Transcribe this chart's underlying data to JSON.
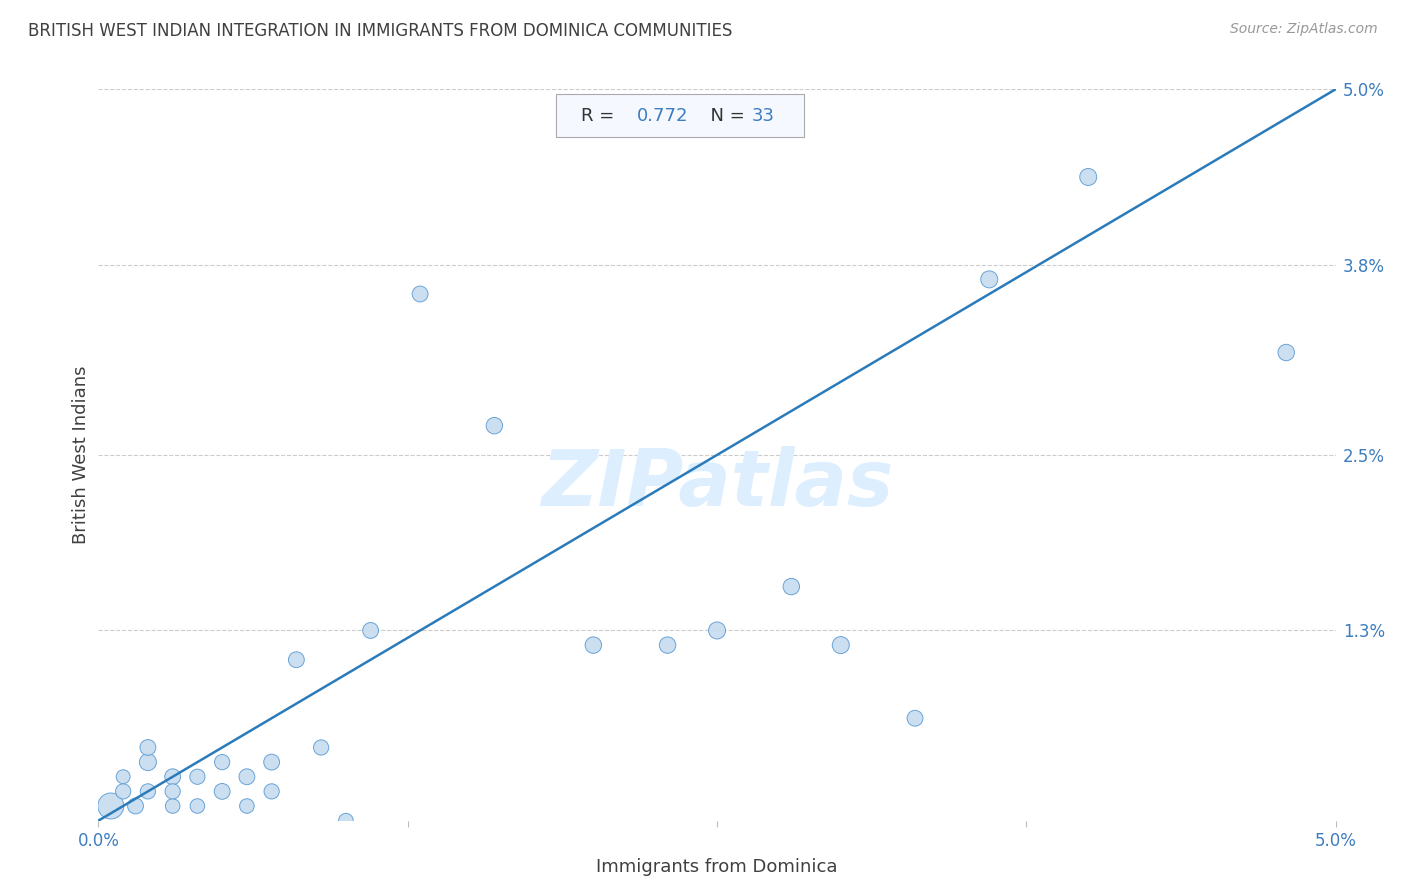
{
  "title": "BRITISH WEST INDIAN INTEGRATION IN IMMIGRANTS FROM DOMINICA COMMUNITIES",
  "source": "Source: ZipAtlas.com",
  "xlabel": "Immigrants from Dominica",
  "ylabel": "British West Indians",
  "R": 0.772,
  "N": 33,
  "xlim": [
    0.0,
    0.05
  ],
  "ylim": [
    0.0,
    0.05
  ],
  "xtick_pos": [
    0.0,
    0.0125,
    0.025,
    0.0375,
    0.05
  ],
  "xtick_labels": [
    "0.0%",
    "",
    "",
    "",
    "5.0%"
  ],
  "ytick_labels_right": [
    "5.0%",
    "3.8%",
    "2.5%",
    "1.3%",
    ""
  ],
  "ytick_positions_right": [
    0.05,
    0.038,
    0.025,
    0.013,
    0.0
  ],
  "scatter_x": [
    0.0005,
    0.001,
    0.001,
    0.0015,
    0.002,
    0.002,
    0.002,
    0.003,
    0.003,
    0.003,
    0.004,
    0.004,
    0.005,
    0.005,
    0.006,
    0.006,
    0.007,
    0.007,
    0.008,
    0.009,
    0.01,
    0.011,
    0.013,
    0.016,
    0.02,
    0.023,
    0.025,
    0.028,
    0.03,
    0.033,
    0.036,
    0.04,
    0.048
  ],
  "scatter_y": [
    0.001,
    0.002,
    0.003,
    0.001,
    0.004,
    0.002,
    0.005,
    0.001,
    0.003,
    0.002,
    0.001,
    0.003,
    0.002,
    0.004,
    0.001,
    0.003,
    0.002,
    0.004,
    0.011,
    0.005,
    0.0,
    0.013,
    0.036,
    0.027,
    0.012,
    0.012,
    0.013,
    0.016,
    0.012,
    0.007,
    0.037,
    0.044,
    0.032
  ],
  "scatter_sizes": [
    350,
    120,
    100,
    130,
    150,
    120,
    130,
    110,
    130,
    120,
    110,
    120,
    130,
    120,
    110,
    130,
    120,
    130,
    130,
    120,
    110,
    130,
    130,
    140,
    140,
    140,
    150,
    140,
    150,
    130,
    150,
    150,
    140
  ],
  "scatter_color": "#c6dcef",
  "scatter_edge_color": "#5b9bd5",
  "line_color": "#2b7bba",
  "grid_color": "#cccccc",
  "background_color": "#ffffff",
  "title_color": "#404040",
  "axis_label_color": "#404040",
  "tick_label_color": "#3d7dbf",
  "watermark_color": "#ddeeff",
  "box_facecolor": "#f5f9ff",
  "box_edgecolor": "#aaaaaa",
  "stat_label_color": "#333333",
  "stat_value_color": "#3d7dbf"
}
